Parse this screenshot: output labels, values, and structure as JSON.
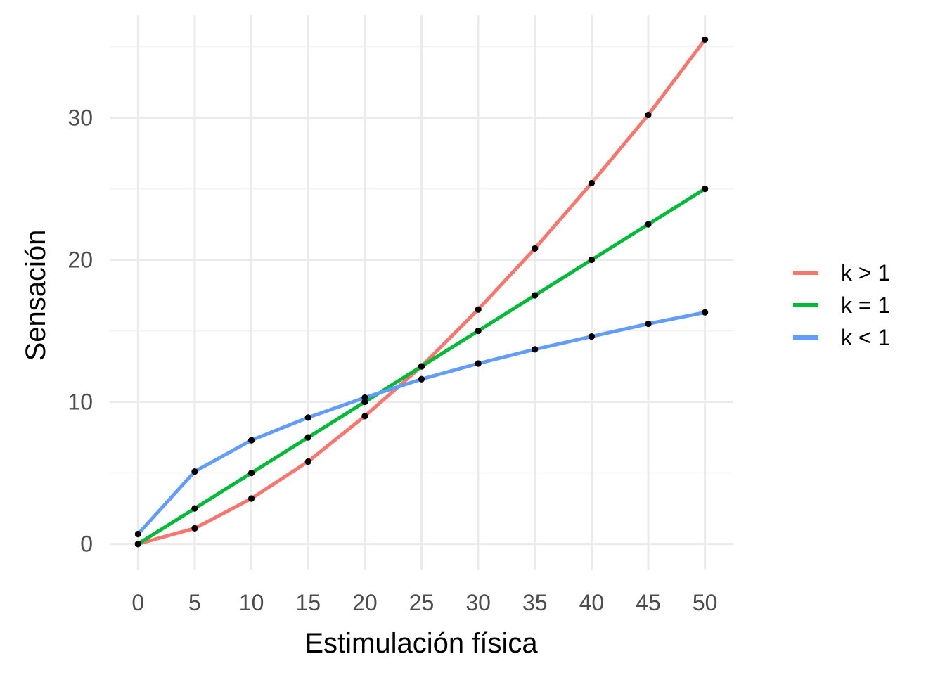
{
  "chart_data": {
    "type": "line",
    "title": "",
    "xlabel": "Estimulación física",
    "ylabel": "Sensación",
    "x": [
      0,
      5,
      10,
      15,
      20,
      25,
      30,
      35,
      40,
      45,
      50
    ],
    "xticks": [
      "0",
      "5",
      "10",
      "15",
      "20",
      "25",
      "30",
      "35",
      "40",
      "45",
      "50"
    ],
    "yticks": [
      "0",
      "10",
      "20",
      "30"
    ],
    "xlim": [
      -2.5,
      52.5
    ],
    "ylim": [
      -1.8,
      37.2
    ],
    "grid": true,
    "legend_position": "right",
    "point_color": "#000000",
    "series": [
      {
        "name": "k > 1",
        "color": "#F8766D",
        "values": [
          0,
          1.1,
          3.2,
          5.8,
          9.0,
          12.5,
          16.5,
          20.8,
          25.4,
          30.2,
          35.5
        ]
      },
      {
        "name": "k = 1",
        "color": "#00BA38",
        "values": [
          0,
          2.5,
          5.0,
          7.5,
          10.0,
          12.5,
          15.0,
          17.5,
          20.0,
          22.5,
          25.0
        ]
      },
      {
        "name": "k < 1",
        "color": "#619CFF",
        "values": [
          0.7,
          5.1,
          7.3,
          8.9,
          10.3,
          11.6,
          12.7,
          13.7,
          14.6,
          15.5,
          16.3
        ]
      }
    ]
  }
}
